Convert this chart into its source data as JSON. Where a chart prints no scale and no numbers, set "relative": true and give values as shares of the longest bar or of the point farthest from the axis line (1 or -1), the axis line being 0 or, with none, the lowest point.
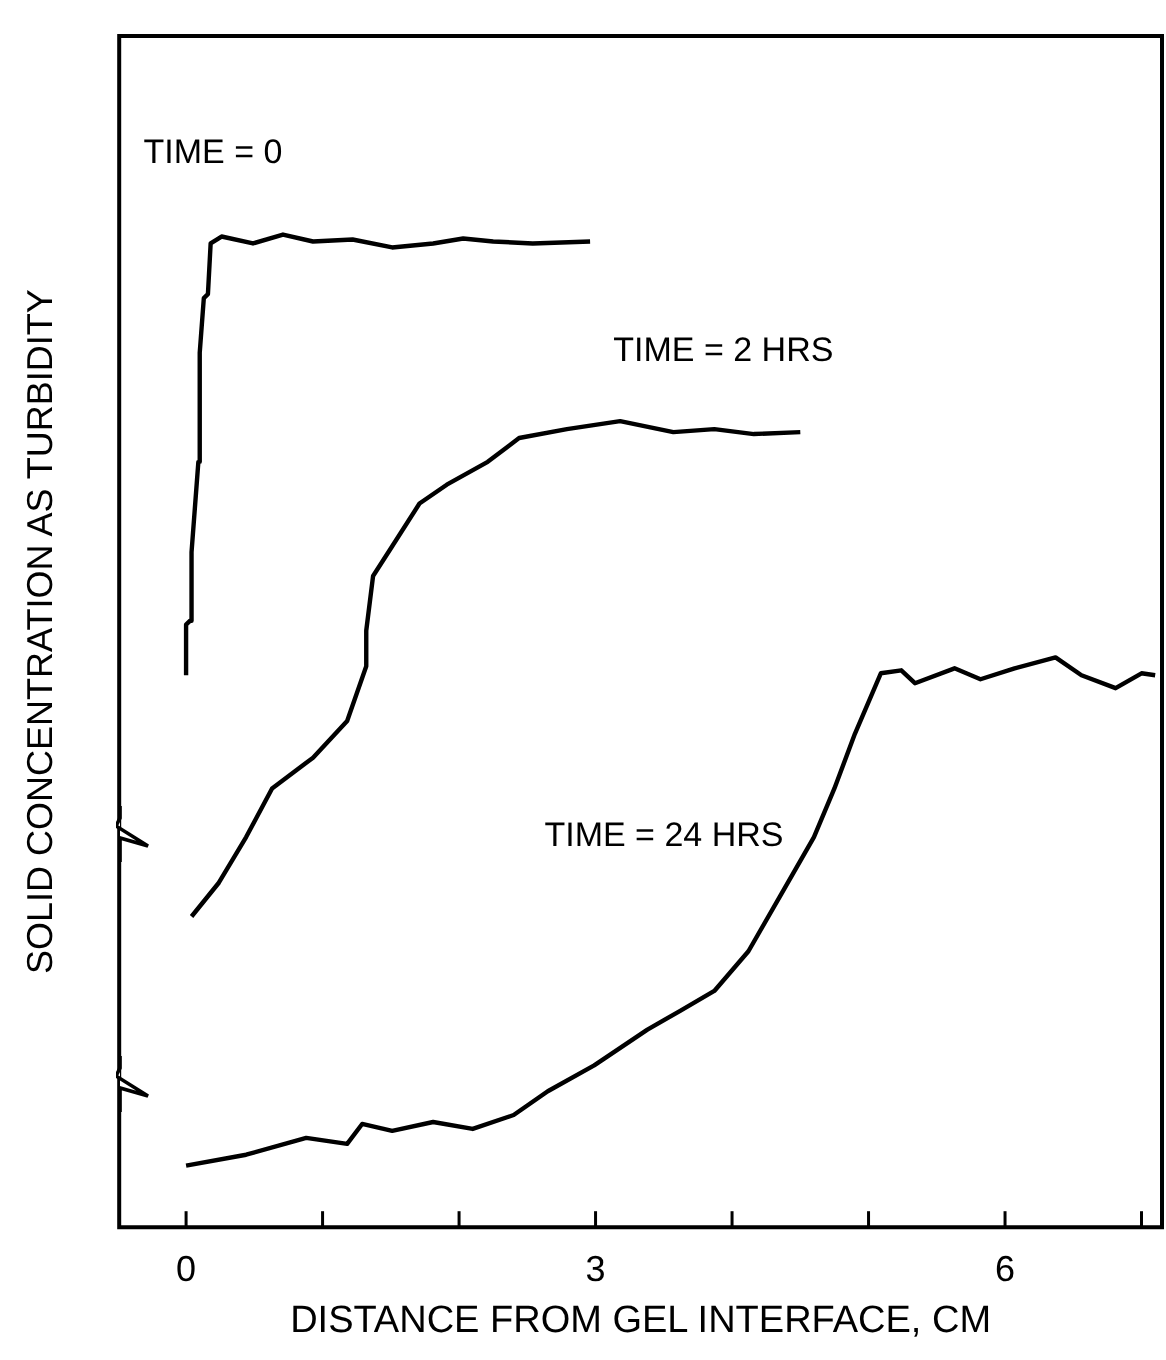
{
  "chart_data": {
    "type": "line",
    "relative": true,
    "xlabel": "DISTANCE FROM GEL INTERFACE, CM",
    "ylabel": "SOLID CONCENTRATION AS TURBIDITY",
    "xlim": [
      -0.49,
      7.15
    ],
    "xticks": [
      {
        "value": 0,
        "label": "0"
      },
      {
        "value": 1,
        "label": null
      },
      {
        "value": 2,
        "label": null
      },
      {
        "value": 3,
        "label": "3"
      },
      {
        "value": 4,
        "label": null
      },
      {
        "value": 5,
        "label": null
      },
      {
        "value": 6,
        "label": "6"
      },
      {
        "value": 7,
        "label": null
      }
    ],
    "grid": false,
    "legend": false,
    "marker": "none",
    "line_style": "solid",
    "series": [
      {
        "name": "TIME = 0",
        "color": "#000000",
        "x": [
          0,
          0,
          0.03,
          0.04,
          0.09,
          0.1,
          0.13,
          0.16,
          0.18,
          0.26,
          0.49,
          0.71,
          0.93,
          1.22,
          1.51,
          1.81,
          2.03,
          2.25,
          2.54,
          2.96
        ],
        "values": [
          0.556,
          0.607,
          0.611,
          0.68,
          0.771,
          0.881,
          0.936,
          0.94,
          0.991,
          0.998,
          0.991,
          1.0,
          0.993,
          0.995,
          0.987,
          0.991,
          0.996,
          0.993,
          0.991,
          0.993
        ]
      },
      {
        "name": "TIME = 2 HRS",
        "color": "#000000",
        "x": [
          0.04,
          0.24,
          0.44,
          0.63,
          0.93,
          1.18,
          1.32,
          1.32,
          1.37,
          1.51,
          1.71,
          1.91,
          2.21,
          2.44,
          2.79,
          3.18,
          3.57,
          3.87,
          4.16,
          4.5
        ],
        "values": [
          0.313,
          0.347,
          0.393,
          0.442,
          0.473,
          0.51,
          0.565,
          0.601,
          0.656,
          0.686,
          0.729,
          0.748,
          0.771,
          0.795,
          0.804,
          0.812,
          0.801,
          0.804,
          0.799,
          0.801
        ]
      },
      {
        "name": "TIME = 24 HRS",
        "color": "#000000",
        "x": [
          0,
          0.44,
          0.88,
          1.18,
          1.29,
          1.51,
          1.81,
          2.1,
          2.4,
          2.65,
          2.99,
          3.38,
          3.62,
          3.87,
          4.12,
          4.35,
          4.6,
          4.75,
          4.9,
          5.09,
          5.24,
          5.34,
          5.63,
          5.82,
          6.07,
          6.37,
          6.56,
          6.81,
          7.0,
          7.1
        ],
        "values": [
          0.062,
          0.073,
          0.09,
          0.084,
          0.104,
          0.097,
          0.106,
          0.099,
          0.113,
          0.137,
          0.163,
          0.199,
          0.218,
          0.238,
          0.278,
          0.333,
          0.393,
          0.442,
          0.497,
          0.558,
          0.561,
          0.548,
          0.563,
          0.552,
          0.563,
          0.574,
          0.556,
          0.543,
          0.558,
          0.556
        ]
      }
    ]
  }
}
